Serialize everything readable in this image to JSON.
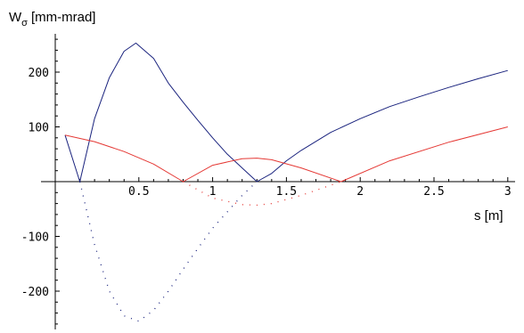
{
  "chart_data": {
    "type": "line",
    "title": "",
    "ylabel_main": "W",
    "ylabel_sub": "σ",
    "ylabel_unit": "[mm-mrad]",
    "xlabel": "s [m]",
    "xlim": [
      0,
      3
    ],
    "ylim": [
      -265,
      270
    ],
    "x_ticks": [
      0.5,
      1,
      1.5,
      2,
      2.5,
      3
    ],
    "x_tick_labels": [
      "0.5",
      "1",
      "1.5",
      "2",
      "2.5",
      "3"
    ],
    "y_ticks": [
      -200,
      -100,
      100,
      200
    ],
    "y_tick_labels": [
      "-200",
      "-100",
      "100",
      "200"
    ],
    "grid": false,
    "series": [
      {
        "color": "#1a237e",
        "style": "solid",
        "x": [
          0,
          0.1,
          0.2,
          0.3,
          0.4,
          0.48,
          0.6,
          0.7,
          0.8,
          0.9,
          1.0,
          1.1,
          1.2,
          1.3,
          1.4,
          1.5,
          1.6,
          1.8,
          2.0,
          2.2,
          2.4,
          2.6,
          2.8,
          3.0
        ],
        "y": [
          85,
          0,
          115,
          190,
          238,
          253,
          225,
          180,
          145,
          112,
          80,
          50,
          25,
          0,
          15,
          38,
          57,
          90,
          115,
          137,
          155,
          172,
          188,
          203
        ]
      },
      {
        "color": "#1a237e",
        "style": "dotted",
        "x": [
          0.1,
          0.2,
          0.3,
          0.4,
          0.5,
          0.6,
          0.7,
          0.8,
          0.9,
          1.0,
          1.1,
          1.2,
          1.3
        ],
        "y": [
          0,
          -115,
          -200,
          -245,
          -255,
          -235,
          -200,
          -160,
          -122,
          -85,
          -55,
          -25,
          0
        ]
      },
      {
        "color": "#e53935",
        "style": "solid",
        "x": [
          0,
          0.2,
          0.4,
          0.6,
          0.8,
          1.0,
          1.2,
          1.3,
          1.4,
          1.6,
          1.87,
          2.2,
          2.6,
          3.0
        ],
        "y": [
          85,
          73,
          55,
          32,
          0,
          30,
          42,
          43,
          40,
          25,
          0,
          38,
          72,
          100
        ]
      },
      {
        "color": "#e53935",
        "style": "dotted",
        "x": [
          0.8,
          1.0,
          1.2,
          1.3,
          1.4,
          1.6,
          1.87
        ],
        "y": [
          0,
          -30,
          -42,
          -43,
          -40,
          -25,
          0
        ]
      }
    ]
  }
}
